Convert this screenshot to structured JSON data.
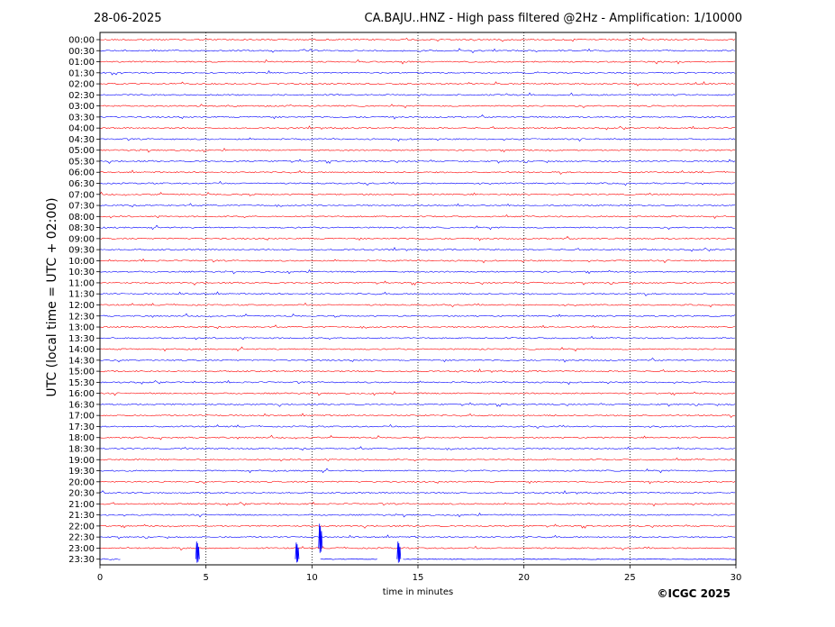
{
  "chart_data": {
    "type": "line",
    "date": "28-06-2025",
    "title": "CA.BAJU..HNZ - High pass filtered @2Hz - Amplification: 1/10000",
    "ylabel": "UTC (local time = UTC + 02:00)",
    "xlabel": "time in minutes",
    "copyright": "©ICGC 2025",
    "xlim": [
      0,
      30
    ],
    "x_ticks": [
      "0",
      "5",
      "10",
      "15",
      "20",
      "25",
      "30"
    ],
    "x_tick_values": [
      0,
      5,
      10,
      15,
      20,
      25,
      30
    ],
    "vertical_gridlines_minutes": [
      5,
      10,
      15,
      20,
      25
    ],
    "grid": "vertical dotted lines at 5-minute intervals",
    "trace_colors": {
      "even": "#ff0000",
      "odd": "#0000ff"
    },
    "rows": [
      "00:00",
      "00:30",
      "01:00",
      "01:30",
      "02:00",
      "02:30",
      "03:00",
      "03:30",
      "04:00",
      "04:30",
      "05:00",
      "05:30",
      "06:00",
      "06:30",
      "07:00",
      "07:30",
      "08:00",
      "08:30",
      "09:00",
      "09:30",
      "10:00",
      "10:30",
      "11:00",
      "11:30",
      "12:00",
      "12:30",
      "13:00",
      "13:30",
      "14:00",
      "14:30",
      "15:00",
      "15:30",
      "16:00",
      "16:30",
      "17:00",
      "17:30",
      "18:00",
      "18:30",
      "19:00",
      "19:30",
      "20:00",
      "20:30",
      "21:00",
      "21:30",
      "22:00",
      "22:30",
      "23:00",
      "23:30"
    ],
    "notable_events": [
      {
        "row": "23:30",
        "minute": 4.6,
        "direction": "up",
        "amplitude_rows": 1.6
      },
      {
        "row": "23:30",
        "minute": 9.3,
        "direction": "up",
        "amplitude_rows": 1.5
      },
      {
        "row": "23:00",
        "minute": 10.4,
        "direction": "up",
        "amplitude_rows": 2.2
      },
      {
        "row": "23:30",
        "minute": 14.1,
        "direction": "up",
        "amplitude_rows": 1.6
      }
    ],
    "last_row_end_minute": 30
  }
}
